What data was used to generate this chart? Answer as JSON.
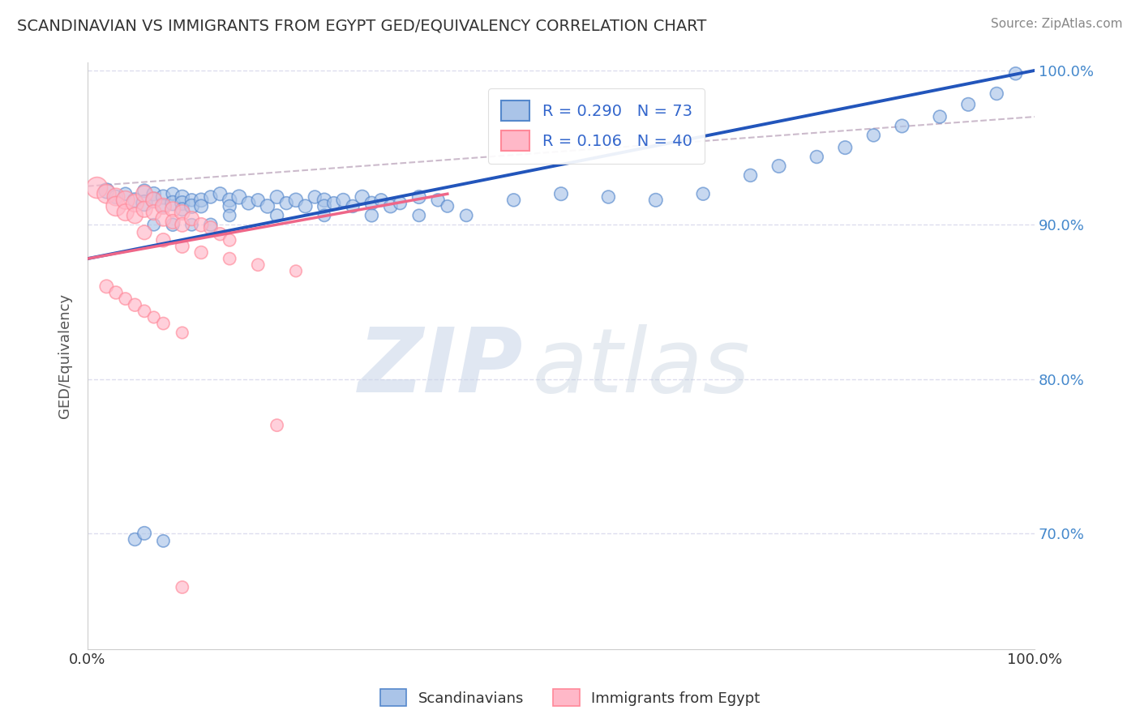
{
  "title": "SCANDINAVIAN VS IMMIGRANTS FROM EGYPT GED/EQUIVALENCY CORRELATION CHART",
  "source": "Source: ZipAtlas.com",
  "ylabel": "GED/Equivalency",
  "xlim": [
    0.0,
    1.0
  ],
  "ylim": [
    0.625,
    1.005
  ],
  "y_ticks": [
    0.7,
    0.8,
    0.9,
    1.0
  ],
  "right_y_tick_labels": [
    "70.0%",
    "80.0%",
    "90.0%",
    "100.0%"
  ],
  "legend_blue_label": "R = 0.290   N = 73",
  "legend_pink_label": "R = 0.106   N = 40",
  "blue_color_face": "#AAC4E8",
  "blue_color_edge": "#5588CC",
  "pink_color_face": "#FFB8C8",
  "pink_color_edge": "#FF8899",
  "blue_line_color": "#2255BB",
  "pink_line_color": "#EE6688",
  "dashed_line_color": "#CCBBCC",
  "background_color": "#FFFFFF",
  "title_color": "#333333",
  "source_color": "#888888",
  "blue_scatter_x": [
    0.02,
    0.03,
    0.04,
    0.05,
    0.06,
    0.06,
    0.07,
    0.07,
    0.08,
    0.08,
    0.09,
    0.09,
    0.1,
    0.1,
    0.1,
    0.11,
    0.11,
    0.12,
    0.12,
    0.13,
    0.14,
    0.15,
    0.15,
    0.16,
    0.17,
    0.18,
    0.19,
    0.2,
    0.21,
    0.22,
    0.23,
    0.24,
    0.25,
    0.25,
    0.26,
    0.27,
    0.28,
    0.29,
    0.3,
    0.31,
    0.32,
    0.33,
    0.35,
    0.37,
    0.38,
    0.45,
    0.5,
    0.55,
    0.6,
    0.65,
    0.7,
    0.73,
    0.77,
    0.8,
    0.83,
    0.86,
    0.9,
    0.93,
    0.96,
    0.98,
    0.15,
    0.2,
    0.25,
    0.3,
    0.35,
    0.4,
    0.07,
    0.09,
    0.11,
    0.13,
    0.05,
    0.06,
    0.08
  ],
  "blue_scatter_y": [
    0.922,
    0.918,
    0.92,
    0.916,
    0.922,
    0.914,
    0.92,
    0.916,
    0.918,
    0.912,
    0.92,
    0.914,
    0.918,
    0.914,
    0.91,
    0.916,
    0.912,
    0.916,
    0.912,
    0.918,
    0.92,
    0.916,
    0.912,
    0.918,
    0.914,
    0.916,
    0.912,
    0.918,
    0.914,
    0.916,
    0.912,
    0.918,
    0.916,
    0.912,
    0.914,
    0.916,
    0.912,
    0.918,
    0.914,
    0.916,
    0.912,
    0.914,
    0.918,
    0.916,
    0.912,
    0.916,
    0.92,
    0.918,
    0.916,
    0.92,
    0.932,
    0.938,
    0.944,
    0.95,
    0.958,
    0.964,
    0.97,
    0.978,
    0.985,
    0.998,
    0.906,
    0.906,
    0.906,
    0.906,
    0.906,
    0.906,
    0.9,
    0.9,
    0.9,
    0.9,
    0.696,
    0.7,
    0.695
  ],
  "blue_scatter_size": [
    180,
    150,
    130,
    160,
    140,
    200,
    150,
    180,
    160,
    140,
    130,
    170,
    150,
    160,
    140,
    130,
    160,
    150,
    140,
    130,
    140,
    150,
    130,
    160,
    140,
    130,
    150,
    140,
    130,
    150,
    140,
    130,
    150,
    140,
    130,
    140,
    130,
    150,
    140,
    130,
    140,
    130,
    140,
    130,
    120,
    130,
    140,
    130,
    140,
    130,
    130,
    140,
    130,
    140,
    130,
    140,
    130,
    140,
    130,
    130,
    120,
    130,
    120,
    130,
    120,
    120,
    120,
    130,
    120,
    130,
    130,
    140,
    120
  ],
  "pink_scatter_x": [
    0.01,
    0.02,
    0.03,
    0.03,
    0.04,
    0.04,
    0.05,
    0.05,
    0.06,
    0.06,
    0.07,
    0.07,
    0.08,
    0.08,
    0.09,
    0.09,
    0.1,
    0.1,
    0.11,
    0.12,
    0.13,
    0.14,
    0.15,
    0.06,
    0.08,
    0.1,
    0.12,
    0.15,
    0.18,
    0.22,
    0.02,
    0.03,
    0.04,
    0.05,
    0.06,
    0.07,
    0.08,
    0.1,
    0.2,
    0.1
  ],
  "pink_scatter_y": [
    0.924,
    0.92,
    0.918,
    0.912,
    0.916,
    0.908,
    0.914,
    0.906,
    0.92,
    0.91,
    0.916,
    0.908,
    0.912,
    0.904,
    0.91,
    0.902,
    0.908,
    0.9,
    0.904,
    0.9,
    0.898,
    0.894,
    0.89,
    0.895,
    0.89,
    0.886,
    0.882,
    0.878,
    0.874,
    0.87,
    0.86,
    0.856,
    0.852,
    0.848,
    0.844,
    0.84,
    0.836,
    0.83,
    0.77,
    0.665
  ],
  "pink_scatter_size": [
    350,
    280,
    240,
    300,
    260,
    220,
    240,
    200,
    220,
    200,
    200,
    180,
    200,
    180,
    180,
    160,
    180,
    160,
    160,
    150,
    140,
    130,
    120,
    160,
    150,
    140,
    130,
    120,
    120,
    110,
    140,
    130,
    120,
    130,
    120,
    110,
    120,
    110,
    120,
    120
  ],
  "blue_line_x": [
    0.0,
    1.0
  ],
  "blue_line_y": [
    0.878,
    1.0
  ],
  "pink_line_x": [
    0.0,
    0.38
  ],
  "pink_line_y": [
    0.878,
    0.92
  ],
  "dashed_line_x": [
    0.0,
    1.0
  ],
  "dashed_line_y": [
    0.925,
    0.97
  ]
}
